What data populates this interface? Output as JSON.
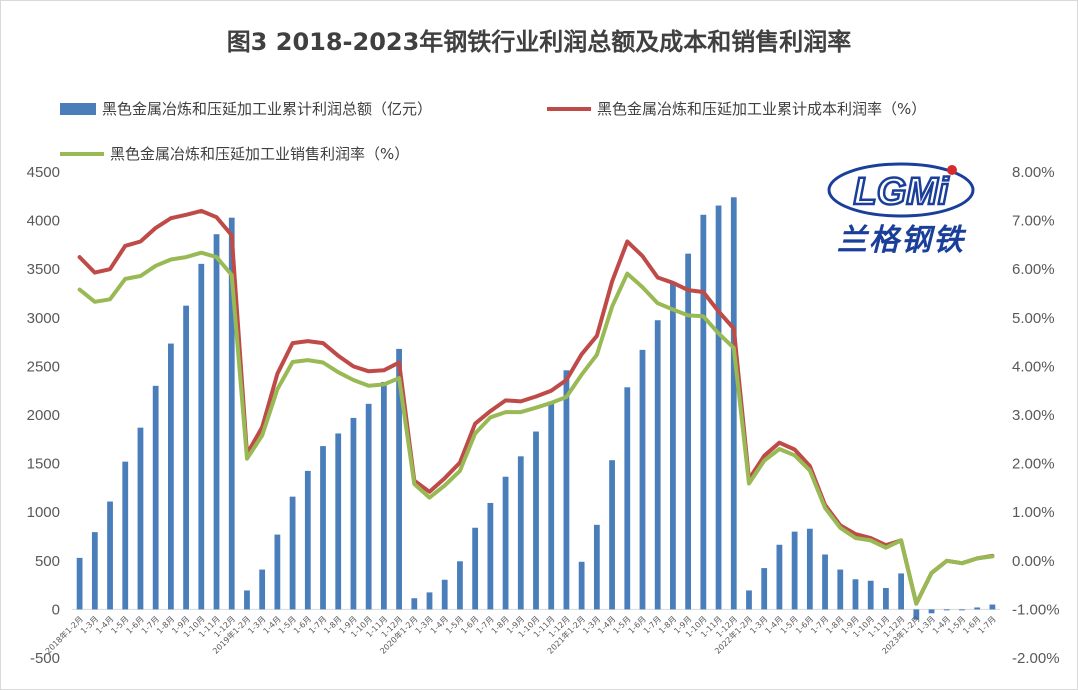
{
  "title": "图3 2018-2023年钢铁行业利润总额及成本和销售利润率",
  "logo": {
    "wordmark": "LGMi",
    "tagline": "兰格钢铁"
  },
  "legend": [
    {
      "label": "黑色金属冶炼和压延加工业累计利润总额（亿元）",
      "color": "#4a7ebb",
      "kind": "bar"
    },
    {
      "label": "黑色金属冶炼和压延加工业累计成本利润率（%）",
      "color": "#be4b48",
      "kind": "line"
    },
    {
      "label": "黑色金属冶炼和压延加工业销售利润率（%）",
      "color": "#98b954",
      "kind": "line"
    }
  ],
  "chart_data": {
    "type": "bar+line",
    "categories": [
      "2018年1-2月",
      "1-3月",
      "1-4月",
      "1-5月",
      "1-6月",
      "1-7月",
      "1-8月",
      "1-9月",
      "1-10月",
      "1-11月",
      "1-12月",
      "2019年1-2月",
      "1-3月",
      "1-4月",
      "1-5月",
      "1-6月",
      "1-7月",
      "1-8月",
      "1-9月",
      "1-10月",
      "1-11月",
      "1-12月",
      "2020年1-2月",
      "1-3月",
      "1-4月",
      "1-5月",
      "1-6月",
      "1-7月",
      "1-8月",
      "1-9月",
      "1-10月",
      "1-11月",
      "1-12月",
      "2021年1-2月",
      "1-3月",
      "1-4月",
      "1-5月",
      "1-6月",
      "1-7月",
      "1-8月",
      "1-9月",
      "1-10月",
      "1-11月",
      "1-12月",
      "2022年1-2月",
      "1-3月",
      "1-4月",
      "1-5月",
      "1-6月",
      "1-7月",
      "1-8月",
      "1-9月",
      "1-10月",
      "1-11月",
      "1-12月",
      "2023年1-2月",
      "1-3月",
      "1-4月",
      "1-5月",
      "1-6月",
      "1-7月"
    ],
    "y_left": {
      "min": -500,
      "max": 4500,
      "step": 500,
      "ticks": [
        "-500",
        "0",
        "500",
        "1000",
        "1500",
        "2000",
        "2500",
        "3000",
        "3500",
        "4000",
        "4500"
      ]
    },
    "y_right": {
      "min": -2,
      "max": 8,
      "step": 1,
      "ticks": [
        "-2.00%",
        "-1.00%",
        "0.00%",
        "1.00%",
        "2.00%",
        "3.00%",
        "4.00%",
        "5.00%",
        "6.00%",
        "7.00%",
        "8.00%"
      ]
    },
    "series": [
      {
        "name": "黑色金属冶炼和压延加工业累计利润总额（亿元）",
        "axis": "left",
        "type": "bar",
        "values": [
          530,
          795,
          1110,
          1520,
          1870,
          2300,
          2735,
          3125,
          3555,
          3860,
          4030,
          195,
          410,
          770,
          1160,
          1425,
          1680,
          1810,
          1970,
          2115,
          2340,
          2680,
          115,
          175,
          305,
          495,
          840,
          1095,
          1365,
          1575,
          1830,
          2140,
          2460,
          490,
          870,
          1535,
          2285,
          2670,
          2975,
          3370,
          3660,
          4060,
          4155,
          4240,
          195,
          425,
          665,
          800,
          830,
          565,
          410,
          310,
          295,
          220,
          370,
          -105,
          -40,
          -10,
          -10,
          20,
          50
        ]
      },
      {
        "name": "黑色金属冶炼和压延加工业累计成本利润率（%）",
        "axis": "right",
        "type": "line",
        "values": [
          6.25,
          5.93,
          6.0,
          6.48,
          6.57,
          6.85,
          7.05,
          7.12,
          7.2,
          7.07,
          6.7,
          2.2,
          2.75,
          3.85,
          4.48,
          4.52,
          4.48,
          4.22,
          4.0,
          3.9,
          3.92,
          4.08,
          1.65,
          1.42,
          1.7,
          2.02,
          2.82,
          3.08,
          3.3,
          3.28,
          3.38,
          3.5,
          3.72,
          4.25,
          4.63,
          5.75,
          6.57,
          6.27,
          5.83,
          5.72,
          5.57,
          5.53,
          5.13,
          4.78,
          1.68,
          2.16,
          2.43,
          2.29,
          1.95,
          1.15,
          0.73,
          0.55,
          0.47,
          0.32,
          0.42,
          -0.88,
          -0.25,
          0.0,
          -0.05,
          0.05,
          0.1
        ]
      },
      {
        "name": "黑色金属冶炼和压延加工业销售利润率（%）",
        "axis": "right",
        "type": "line",
        "values": [
          5.58,
          5.33,
          5.38,
          5.8,
          5.86,
          6.07,
          6.2,
          6.25,
          6.34,
          6.25,
          5.88,
          2.1,
          2.58,
          3.53,
          4.09,
          4.13,
          4.08,
          3.88,
          3.72,
          3.6,
          3.63,
          3.76,
          1.58,
          1.3,
          1.55,
          1.85,
          2.62,
          2.95,
          3.06,
          3.06,
          3.15,
          3.25,
          3.37,
          3.83,
          4.24,
          5.23,
          5.91,
          5.63,
          5.3,
          5.17,
          5.05,
          5.03,
          4.68,
          4.38,
          1.59,
          2.06,
          2.3,
          2.17,
          1.86,
          1.09,
          0.68,
          0.47,
          0.42,
          0.27,
          0.42,
          -0.88,
          -0.25,
          0.0,
          -0.05,
          0.05,
          0.09
        ]
      }
    ],
    "grid": false,
    "legend_position": "top"
  }
}
